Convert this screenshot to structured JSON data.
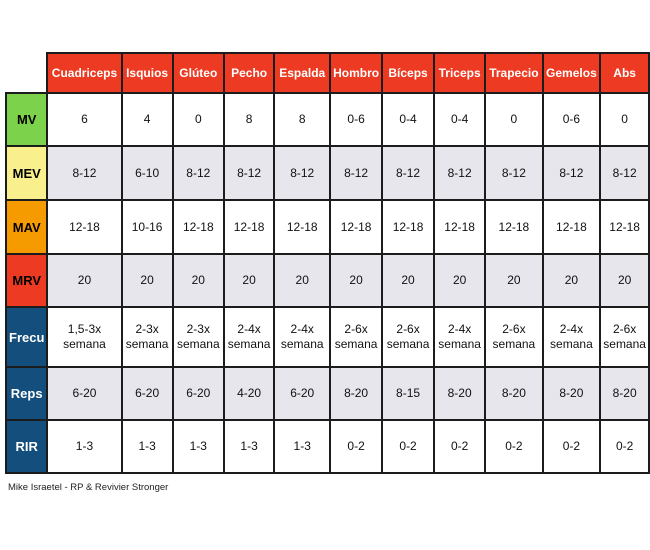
{
  "table": {
    "columns": [
      "Cuadriceps",
      "Isquios",
      "Glúteo",
      "Pecho",
      "Espalda",
      "Hombro",
      "Bíceps",
      "Triceps",
      "Trapecio",
      "Gemelos",
      "Abs"
    ],
    "rows": [
      {
        "label": "MV",
        "label_bg": "#7CD24A",
        "label_fg": "#000000",
        "values": [
          "6",
          "4",
          "0",
          "8",
          "8",
          "0-6",
          "0-4",
          "0-4",
          "0",
          "0-6",
          "0"
        ]
      },
      {
        "label": "MEV",
        "label_bg": "#F9F08D",
        "label_fg": "#000000",
        "values": [
          "8-12",
          "6-10",
          "8-12",
          "8-12",
          "8-12",
          "8-12",
          "8-12",
          "8-12",
          "8-12",
          "8-12",
          "8-12"
        ]
      },
      {
        "label": "MAV",
        "label_bg": "#F59B00",
        "label_fg": "#000000",
        "values": [
          "12-18",
          "10-16",
          "12-18",
          "12-18",
          "12-18",
          "12-18",
          "12-18",
          "12-18",
          "12-18",
          "12-18",
          "12-18"
        ]
      },
      {
        "label": "MRV",
        "label_bg": "#EC3B22",
        "label_fg": "#000000",
        "values": [
          "20",
          "20",
          "20",
          "20",
          "20",
          "20",
          "20",
          "20",
          "20",
          "20",
          "20"
        ]
      },
      {
        "label": "Frecu",
        "label_bg": "#144E7C",
        "label_fg": "#FFFFFF",
        "values": [
          "1,5-3x semana",
          "2-3x semana",
          "2-3x semana",
          "2-4x semana",
          "2-4x semana",
          "2-6x semana",
          "2-6x semana",
          "2-4x semana",
          "2-6x semana",
          "2-4x semana",
          "2-6x semana"
        ]
      },
      {
        "label": "Reps",
        "label_bg": "#144E7C",
        "label_fg": "#FFFFFF",
        "values": [
          "6-20",
          "6-20",
          "6-20",
          "4-20",
          "6-20",
          "8-20",
          "8-15",
          "8-20",
          "8-20",
          "8-20",
          "8-20"
        ]
      },
      {
        "label": "RIR",
        "label_bg": "#144E7C",
        "label_fg": "#FFFFFF",
        "values": [
          "1-3",
          "1-3",
          "1-3",
          "1-3",
          "1-3",
          "0-2",
          "0-2",
          "0-2",
          "0-2",
          "0-2",
          "0-2"
        ]
      }
    ]
  },
  "colors": {
    "header_bg": "#EC3B22",
    "header_fg": "#FFFFFF",
    "zebra_even": "#FFFFFF",
    "zebra_odd": "#E6E6EC",
    "border": "#1c1c1c"
  },
  "footer": {
    "credit": "Mike Israetel - RP & Revivier Stronger"
  }
}
